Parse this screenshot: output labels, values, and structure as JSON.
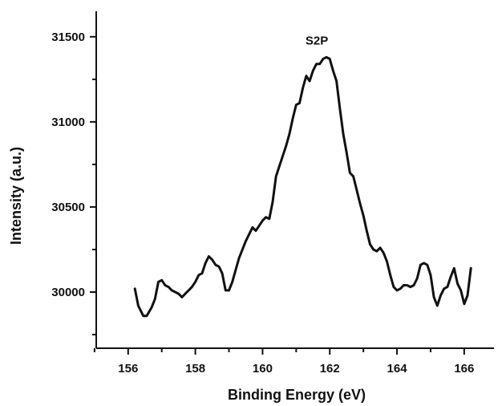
{
  "chart_data": {
    "type": "line",
    "xlabel": "Binding Energy (eV)",
    "ylabel": "Intensity (a.u.)",
    "annotation": "S2P",
    "xlim": [
      155.05,
      166.6
    ],
    "ylim": [
      29670,
      31650
    ],
    "x_ticks": [
      156,
      158,
      160,
      162,
      164,
      166
    ],
    "x_tick_labels": [
      "156",
      "158",
      "160",
      "162",
      "164",
      "166"
    ],
    "x_minor_ticks": [
      155,
      157,
      159,
      161,
      163,
      165
    ],
    "y_ticks": [
      30000,
      30500,
      31000,
      31500
    ],
    "y_tick_labels": [
      "30000",
      "30500",
      "31000",
      "31500"
    ],
    "y_minor_ticks": [
      29750,
      30250,
      30750,
      31250
    ],
    "grid": false,
    "legend": "none",
    "series": [
      {
        "color": "#111111",
        "x": [
          156.2,
          156.3,
          156.45,
          156.55,
          156.7,
          156.8,
          156.9,
          157.0,
          157.1,
          157.2,
          157.3,
          157.4,
          157.5,
          157.6,
          157.7,
          157.8,
          157.9,
          158.0,
          158.1,
          158.2,
          158.3,
          158.4,
          158.5,
          158.6,
          158.7,
          158.8,
          158.9,
          159.0,
          159.1,
          159.2,
          159.3,
          159.4,
          159.5,
          159.6,
          159.7,
          159.8,
          159.9,
          160.0,
          160.1,
          160.2,
          160.3,
          160.4,
          160.5,
          160.6,
          160.7,
          160.8,
          160.9,
          161.0,
          161.1,
          161.2,
          161.3,
          161.4,
          161.5,
          161.6,
          161.7,
          161.8,
          161.9,
          162.0,
          162.1,
          162.2,
          162.3,
          162.4,
          162.5,
          162.6,
          162.7,
          162.8,
          162.9,
          163.0,
          163.1,
          163.2,
          163.3,
          163.4,
          163.5,
          163.6,
          163.7,
          163.8,
          163.9,
          164.0,
          164.1,
          164.2,
          164.3,
          164.4,
          164.5,
          164.6,
          164.7,
          164.8,
          164.9,
          165.0,
          165.1,
          165.2,
          165.3,
          165.4,
          165.5,
          165.6,
          165.7,
          165.8,
          165.9,
          166.0,
          166.1,
          166.2
        ],
        "y": [
          30020,
          29920,
          29860,
          29860,
          29910,
          29960,
          30060,
          30070,
          30040,
          30030,
          30010,
          30000,
          29990,
          29970,
          29990,
          30010,
          30030,
          30060,
          30100,
          30110,
          30170,
          30210,
          30190,
          30160,
          30150,
          30110,
          30010,
          30010,
          30060,
          30130,
          30200,
          30250,
          30300,
          30340,
          30380,
          30360,
          30390,
          30420,
          30440,
          30430,
          30530,
          30680,
          30740,
          30800,
          30860,
          30930,
          31020,
          31100,
          31110,
          31200,
          31270,
          31240,
          31300,
          31340,
          31340,
          31370,
          31380,
          31370,
          31300,
          31240,
          31080,
          30930,
          30820,
          30700,
          30680,
          30600,
          30520,
          30450,
          30360,
          30280,
          30250,
          30240,
          30260,
          30230,
          30180,
          30100,
          30030,
          30010,
          30020,
          30040,
          30040,
          30030,
          30040,
          30080,
          30160,
          30170,
          30160,
          30100,
          29970,
          29920,
          29980,
          30020,
          30030,
          30090,
          30140,
          30050,
          30010,
          29930,
          29980,
          30140
        ]
      }
    ]
  }
}
